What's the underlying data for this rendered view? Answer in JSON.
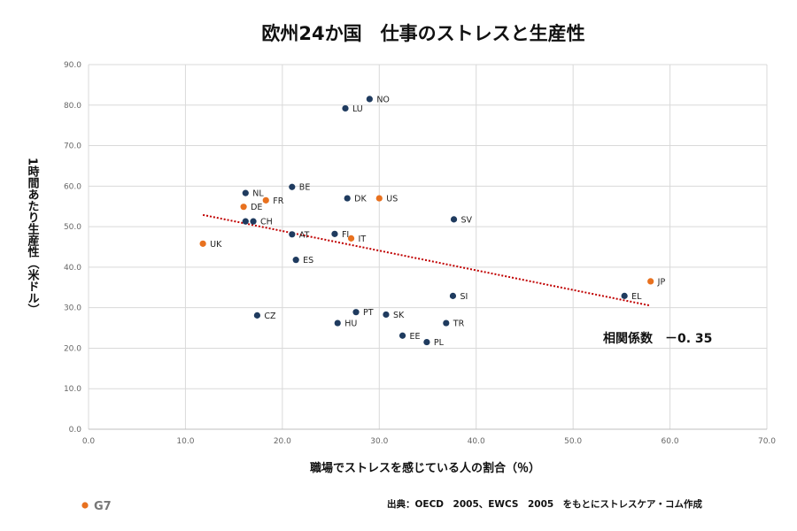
{
  "chart_data": {
    "type": "scatter",
    "title": "欧州24か国　仕事のストレスと生産性",
    "xlabel": "職場でストレスを感じている人の割合（％）",
    "ylabel": "1時間あたり生産性（米ドル）",
    "xlim": [
      0,
      70
    ],
    "ylim": [
      0,
      90
    ],
    "x_ticks": [
      "0.0",
      "10.0",
      "20.0",
      "30.0",
      "40.0",
      "50.0",
      "60.0",
      "70.0"
    ],
    "y_ticks": [
      "0.0",
      "10.0",
      "20.0",
      "30.0",
      "40.0",
      "50.0",
      "60.0",
      "70.0",
      "80.0",
      "90.0"
    ],
    "grid": true,
    "colors": {
      "default": "#1f3b5f",
      "g7": "#e8711f",
      "trend": "#c00000"
    },
    "points": [
      {
        "label": "NO",
        "x": 29.0,
        "y": 81.5,
        "g7": false
      },
      {
        "label": "LU",
        "x": 26.5,
        "y": 79.2,
        "g7": false
      },
      {
        "label": "BE",
        "x": 21.0,
        "y": 59.8,
        "g7": false
      },
      {
        "label": "NL",
        "x": 16.2,
        "y": 58.3,
        "g7": false
      },
      {
        "label": "FR",
        "x": 18.3,
        "y": 56.5,
        "g7": true
      },
      {
        "label": "DK",
        "x": 26.7,
        "y": 57.0,
        "g7": false
      },
      {
        "label": "US",
        "x": 30.0,
        "y": 57.0,
        "g7": true
      },
      {
        "label": "DE",
        "x": 16.0,
        "y": 54.9,
        "g7": true
      },
      {
        "label": "",
        "x": 16.2,
        "y": 51.3,
        "g7": false
      },
      {
        "label": "CH",
        "x": 17.0,
        "y": 51.3,
        "g7": false
      },
      {
        "label": "SV",
        "x": 37.7,
        "y": 51.8,
        "g7": false
      },
      {
        "label": "AT",
        "x": 21.0,
        "y": 48.1,
        "g7": false
      },
      {
        "label": "FI",
        "x": 25.4,
        "y": 48.2,
        "g7": false
      },
      {
        "label": "IT",
        "x": 27.1,
        "y": 47.1,
        "g7": true
      },
      {
        "label": "UK",
        "x": 11.8,
        "y": 45.8,
        "g7": true
      },
      {
        "label": "ES",
        "x": 21.4,
        "y": 41.8,
        "g7": false
      },
      {
        "label": "JP",
        "x": 58.0,
        "y": 36.5,
        "g7": true
      },
      {
        "label": "SI",
        "x": 37.6,
        "y": 32.9,
        "g7": false
      },
      {
        "label": "EL",
        "x": 55.3,
        "y": 32.9,
        "g7": false
      },
      {
        "label": "CZ",
        "x": 17.4,
        "y": 28.1,
        "g7": false
      },
      {
        "label": "PT",
        "x": 27.6,
        "y": 28.9,
        "g7": false
      },
      {
        "label": "SK",
        "x": 30.7,
        "y": 28.3,
        "g7": false
      },
      {
        "label": "HU",
        "x": 25.7,
        "y": 26.2,
        "g7": false
      },
      {
        "label": "TR",
        "x": 36.9,
        "y": 26.2,
        "g7": false
      },
      {
        "label": "EE",
        "x": 32.4,
        "y": 23.1,
        "g7": false
      },
      {
        "label": "PL",
        "x": 34.9,
        "y": 21.5,
        "g7": false
      }
    ],
    "trendline": {
      "x": [
        11.8,
        58.0
      ],
      "y": [
        52.9,
        30.5
      ]
    },
    "annotation": "相関係数　－0. 35",
    "legend": {
      "label": "G7",
      "placement": "bottom-left"
    },
    "source": "出典：OECD　2005、EWCS　2005　をもとにストレスケア・コム作成"
  }
}
